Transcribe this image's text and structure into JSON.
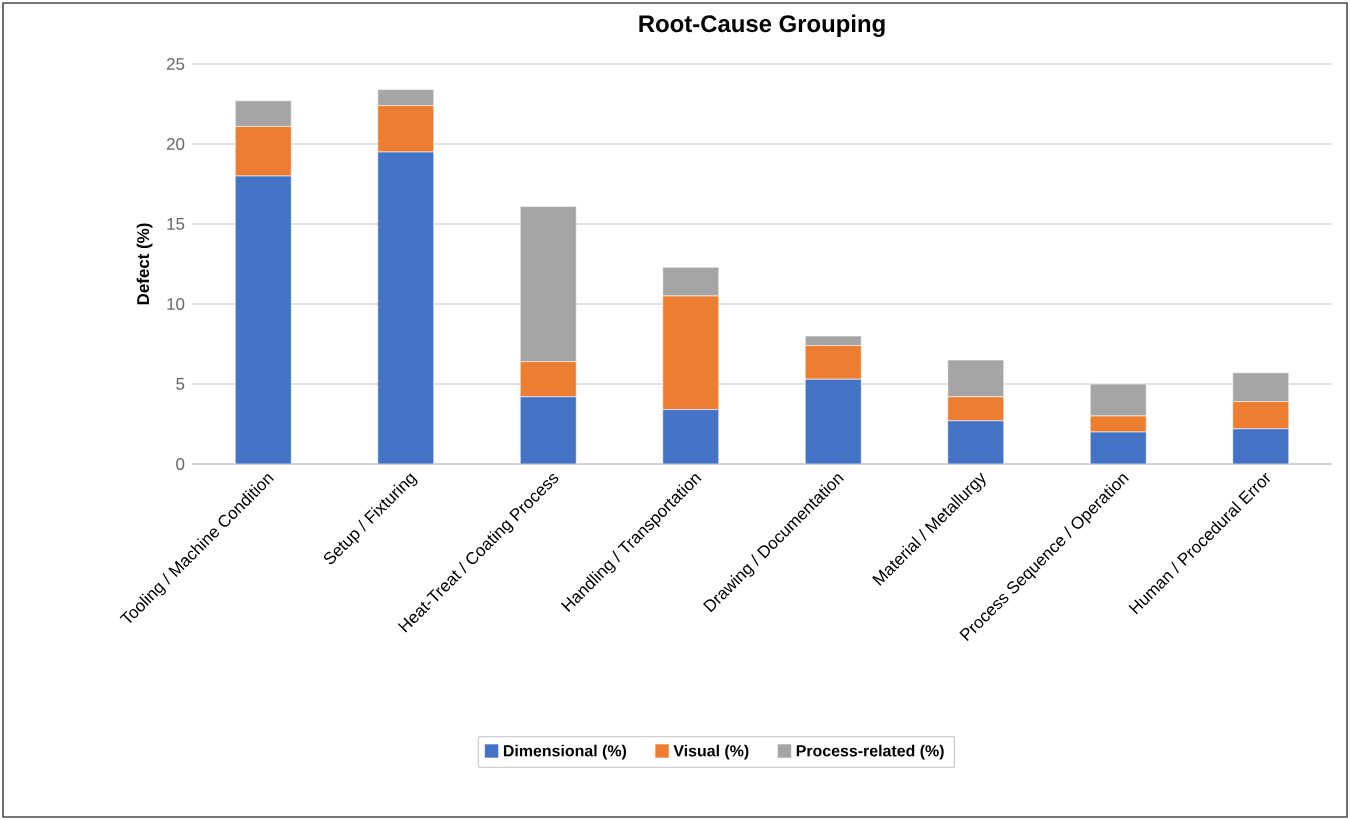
{
  "chart_data": {
    "type": "bar",
    "stacked": true,
    "title": "Root-Cause Grouping",
    "ylabel": "Defect (%)",
    "categories": [
      "Tooling / Machine Condition",
      "Setup / Fixturing",
      "Heat-Treat / Coating Process",
      "Handling / Transportation",
      "Drawing / Documentation",
      "Material / Metallurgy",
      "Process Sequence / Operation",
      "Human / Procedural Error"
    ],
    "series": [
      {
        "name": "Dimensional (%)",
        "color": "#4472c4",
        "values": [
          18.0,
          19.5,
          4.2,
          3.4,
          5.3,
          2.7,
          2.0,
          2.2
        ]
      },
      {
        "name": "Visual (%)",
        "color": "#ed7d31",
        "values": [
          3.1,
          2.9,
          2.2,
          7.1,
          2.1,
          1.5,
          1.0,
          1.7
        ]
      },
      {
        "name": "Process-related (%)",
        "color": "#a5a5a5",
        "values": [
          1.6,
          1.0,
          9.7,
          1.8,
          0.6,
          2.3,
          2.0,
          1.8
        ]
      }
    ],
    "ylim": [
      0,
      25
    ],
    "yticks": [
      0,
      5,
      10,
      15,
      20,
      25
    ],
    "grid": "y",
    "legend": "bottom"
  }
}
